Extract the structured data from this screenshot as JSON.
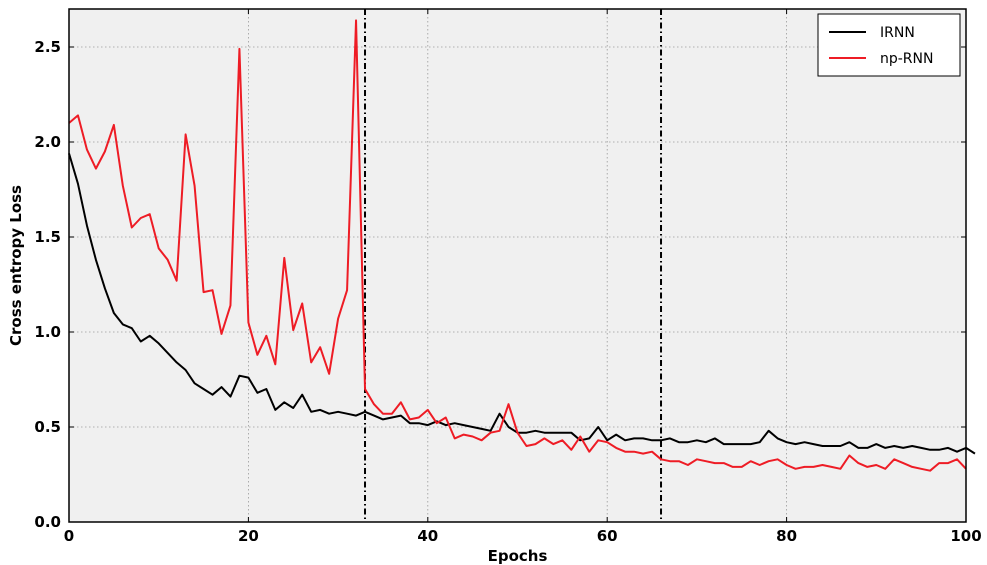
{
  "chart_data": {
    "type": "line",
    "title": "",
    "xlabel": "Epochs",
    "ylabel": "Cross entropy Loss",
    "xlim": [
      0,
      100
    ],
    "ylim": [
      0,
      2.7
    ],
    "xticks": [
      0,
      20,
      40,
      60,
      80,
      100
    ],
    "yticks": [
      0.0,
      0.5,
      1.0,
      1.5,
      2.0,
      2.5
    ],
    "xtick_labels": [
      "0",
      "20",
      "40",
      "60",
      "80",
      "100"
    ],
    "ytick_labels": [
      "0.0",
      "0.5",
      "1.0",
      "1.5",
      "2.0",
      "2.5"
    ],
    "grid": true,
    "legend_position": "top-right",
    "vlines": [
      33,
      66
    ],
    "colors": {
      "IRNN": "#000000",
      "np-RNN": "#ee1c25",
      "background": "#f0f0f0",
      "grid": "#9a9a9a"
    },
    "series": [
      {
        "name": "IRNN",
        "values": [
          1.94,
          1.78,
          1.56,
          1.38,
          1.23,
          1.1,
          1.04,
          1.02,
          0.95,
          0.98,
          0.94,
          0.89,
          0.84,
          0.8,
          0.73,
          0.7,
          0.67,
          0.71,
          0.66,
          0.77,
          0.76,
          0.68,
          0.7,
          0.59,
          0.63,
          0.6,
          0.67,
          0.58,
          0.59,
          0.57,
          0.58,
          0.57,
          0.56,
          0.58,
          0.56,
          0.54,
          0.55,
          0.56,
          0.52,
          0.52,
          0.51,
          0.53,
          0.51,
          0.52,
          0.51,
          0.5,
          0.49,
          0.48,
          0.57,
          0.5,
          0.47,
          0.47,
          0.48,
          0.47,
          0.47,
          0.47,
          0.47,
          0.43,
          0.44,
          0.5,
          0.43,
          0.46,
          0.43,
          0.44,
          0.44,
          0.43,
          0.43,
          0.44,
          0.42,
          0.42,
          0.43,
          0.42,
          0.44,
          0.41,
          0.41,
          0.41,
          0.41,
          0.42,
          0.48,
          0.44,
          0.42,
          0.41,
          0.42,
          0.41,
          0.4,
          0.4,
          0.4,
          0.42,
          0.39,
          0.39,
          0.41,
          0.39,
          0.4,
          0.39,
          0.4,
          0.39,
          0.38,
          0.38,
          0.39,
          0.37,
          0.39,
          0.36
        ]
      },
      {
        "name": "np-RNN",
        "values": [
          2.1,
          2.14,
          1.96,
          1.86,
          1.95,
          2.09,
          1.77,
          1.55,
          1.6,
          1.62,
          1.44,
          1.38,
          1.27,
          2.04,
          1.77,
          1.21,
          1.22,
          0.99,
          1.14,
          2.49,
          1.05,
          0.88,
          0.98,
          0.83,
          1.39,
          1.01,
          1.15,
          0.84,
          0.92,
          0.78,
          1.07,
          1.22,
          2.64,
          0.7,
          0.62,
          0.57,
          0.57,
          0.63,
          0.54,
          0.55,
          0.59,
          0.52,
          0.55,
          0.44,
          0.46,
          0.45,
          0.43,
          0.47,
          0.48,
          0.62,
          0.47,
          0.4,
          0.41,
          0.44,
          0.41,
          0.43,
          0.38,
          0.45,
          0.37,
          0.43,
          0.42,
          0.39,
          0.37,
          0.37,
          0.36,
          0.37,
          0.33,
          0.32,
          0.32,
          0.3,
          0.33,
          0.32,
          0.31,
          0.31,
          0.29,
          0.29,
          0.32,
          0.3,
          0.32,
          0.33,
          0.3,
          0.28,
          0.29,
          0.29,
          0.3,
          0.29,
          0.28,
          0.35,
          0.31,
          0.29,
          0.3,
          0.28,
          0.33,
          0.31,
          0.29,
          0.28,
          0.27,
          0.31,
          0.31,
          0.33,
          0.28
        ]
      }
    ]
  }
}
